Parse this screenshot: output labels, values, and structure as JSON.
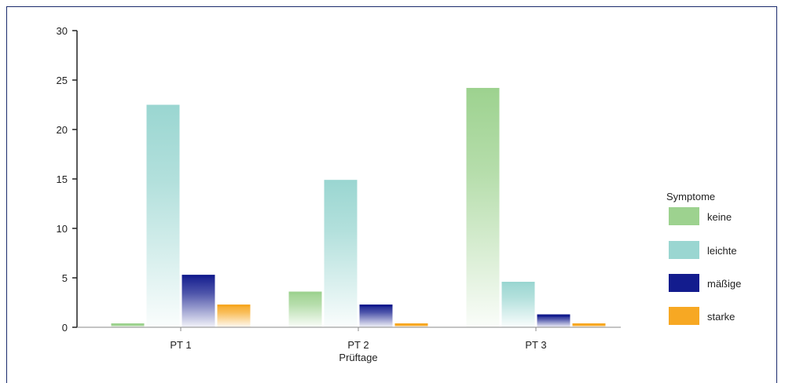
{
  "chart_data": {
    "type": "bar",
    "categories": [
      "PT 1",
      "PT 2",
      "PT 3"
    ],
    "xlabel": "Prüftage",
    "ylabel": "",
    "ylim": [
      0,
      30
    ],
    "yticks": [
      0,
      5,
      10,
      15,
      20,
      25,
      30
    ],
    "grid": false,
    "legend_title": "Symptome",
    "legend_position": "right",
    "series": [
      {
        "name": "keine",
        "color": "#9dd28f",
        "values": [
          0.4,
          3.6,
          24.2
        ]
      },
      {
        "name": "leichte",
        "color": "#9ad6d1",
        "values": [
          22.5,
          14.9,
          4.6
        ]
      },
      {
        "name": "mäßige",
        "color": "#131c8e",
        "values": [
          5.3,
          2.3,
          1.3
        ]
      },
      {
        "name": "starke",
        "color": "#f7a823",
        "values": [
          2.3,
          0.4,
          0.4
        ]
      }
    ]
  }
}
